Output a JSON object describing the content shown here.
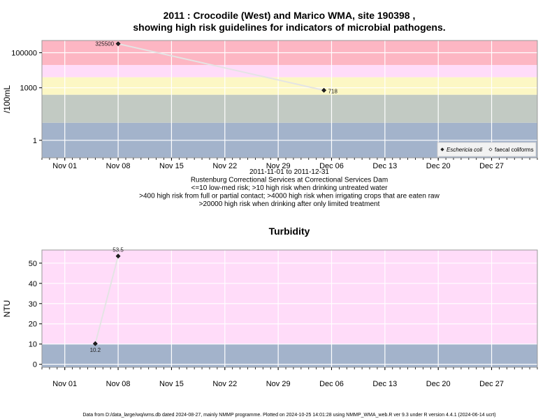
{
  "title_line1": "2011 : Crocodile (West) and Marico WMA, site 190398 ,",
  "title_line2": "showing high risk guidelines for indicators of microbial pathogens.",
  "footer": "Data from D:/data_large/wq/wms.db dated 2024-08-27, mainly NMMP programme. Plotted on 2024-10-25 14:01:28 using NMMP_WMA_web.R ver 9.3 under R version 4.4.1 (2024-06-14 ucrt)",
  "chart_data": [
    {
      "type": "line",
      "scale": "log10",
      "ylabel": "/100mL",
      "ylim": [
        0.1,
        500000
      ],
      "y_ticks": [
        {
          "label": "1",
          "value": 1
        },
        {
          "label": "1000",
          "value": 1000
        },
        {
          "label": "100000",
          "value": 100000
        }
      ],
      "x_ticks": [
        "Nov 01",
        "Nov 08",
        "Nov 15",
        "Nov 22",
        "Nov 29",
        "Dec 06",
        "Dec 13",
        "Dec 20",
        "Dec 27"
      ],
      "xlim": [
        "2011-10-29",
        "2012-01-02"
      ],
      "bands": [
        {
          "from": 0.1,
          "to": 10,
          "color": "#a3b3cb"
        },
        {
          "from": 10,
          "to": 400,
          "color": "#c2cac3"
        },
        {
          "from": 400,
          "to": 4000,
          "color": "#fcf7c4"
        },
        {
          "from": 4000,
          "to": 20000,
          "color": "#ffdcf9"
        },
        {
          "from": 20000,
          "to": 500000,
          "color": "#fdb6c3"
        }
      ],
      "series": [
        {
          "name": "Eschericia coli",
          "points": [
            {
              "x": "2011-11-08",
              "y": 325500,
              "label": "325500",
              "label_pos": "left"
            },
            {
              "x": "2011-12-05",
              "y": 718,
              "label": "718",
              "label_pos": "right"
            }
          ]
        }
      ],
      "legend": {
        "position": "bottom-right",
        "entries": [
          {
            "name": "Eschericia coli",
            "marker": "filled-diamond",
            "italic": true
          },
          {
            "name": "faecal coliforms",
            "marker": "open-diamond",
            "italic": false
          }
        ]
      },
      "subtitle_lines": [
        "2011-11-01 to 2011-12-31",
        "Rustenburg Correctional Services at Correctional Services Dam",
        "<=10 low-med risk; >10 high risk when drinking untreated water",
        ">400 high risk from full or partial contact; >4000 high risk when irrigating crops that are eaten raw",
        ">20000 high risk when drinking after only limited treatment"
      ]
    },
    {
      "type": "line",
      "scale": "linear",
      "title": "Turbidity",
      "ylabel": "NTU",
      "ylim": [
        -1.5,
        56.5
      ],
      "y_ticks": [
        {
          "label": "0",
          "value": 0
        },
        {
          "label": "10",
          "value": 10
        },
        {
          "label": "20",
          "value": 20
        },
        {
          "label": "30",
          "value": 30
        },
        {
          "label": "40",
          "value": 40
        },
        {
          "label": "50",
          "value": 50
        }
      ],
      "x_ticks": [
        "Nov 01",
        "Nov 08",
        "Nov 15",
        "Nov 22",
        "Nov 29",
        "Dec 06",
        "Dec 13",
        "Dec 20",
        "Dec 27"
      ],
      "xlim": [
        "2011-10-29",
        "2012-01-02"
      ],
      "bands": [
        {
          "from": -1.5,
          "to": 10,
          "color": "#a3b3cb"
        },
        {
          "from": 10,
          "to": 56.5,
          "color": "#ffdcf9"
        }
      ],
      "series": [
        {
          "name": "Turbidity",
          "points": [
            {
              "x": "2011-11-05",
              "y": 10.2,
              "label": "10.2",
              "label_pos": "below"
            },
            {
              "x": "2011-11-08",
              "y": 53.5,
              "label": "53.5",
              "label_pos": "above"
            }
          ]
        }
      ]
    }
  ]
}
